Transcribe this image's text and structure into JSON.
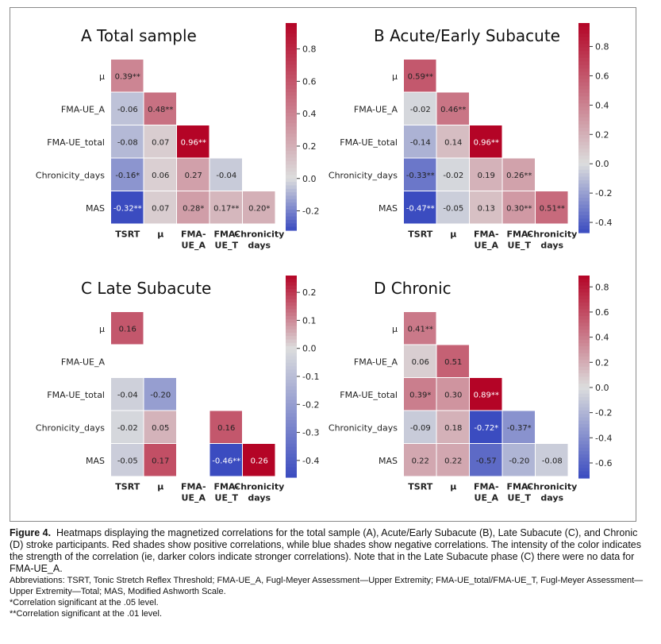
{
  "colors": {
    "strong_negative": "#3b4cc0",
    "neutral": "#dcdddd",
    "strong_positive": "#b40426"
  },
  "chart_data": [
    {
      "type": "heatmap",
      "title": "A  Total sample",
      "rows": [
        "μ",
        "FMA-UE_A",
        "FMA-UE_total",
        "Chronicity_days",
        "MAS"
      ],
      "columns": [
        [
          "TSRT"
        ],
        [
          "μ"
        ],
        [
          "FMA-",
          "UE_A"
        ],
        [
          "FMA-",
          "UE_T"
        ],
        [
          "Chronicity",
          "days"
        ]
      ],
      "values": [
        [
          0.39,
          null,
          null,
          null,
          null
        ],
        [
          -0.06,
          0.48,
          null,
          null,
          null
        ],
        [
          -0.08,
          0.07,
          0.96,
          null,
          null
        ],
        [
          -0.16,
          0.06,
          0.27,
          -0.04,
          null
        ],
        [
          -0.32,
          0.07,
          0.28,
          0.17,
          0.2
        ]
      ],
      "labels": [
        [
          "0.39**",
          null,
          null,
          null,
          null
        ],
        [
          "-0.06",
          "0.48**",
          null,
          null,
          null
        ],
        [
          "-0.08",
          "0.07",
          "0.96**",
          null,
          null
        ],
        [
          "-0.16*",
          "0.06",
          "0.27",
          "-0.04",
          null
        ],
        [
          "-0.32**",
          "0.07",
          "0.28*",
          "0.17**",
          "0.20*"
        ]
      ],
      "vmin": -0.32,
      "vmax": 0.96,
      "ticks": [
        0.8,
        0.6,
        0.4,
        0.2,
        0.0,
        -0.2
      ],
      "tick_labels": [
        "0.8",
        "0.6",
        "0.4",
        "0.2",
        "0.0",
        "-0.2"
      ]
    },
    {
      "type": "heatmap",
      "title": "B  Acute/Early Subacute",
      "rows": [
        "μ",
        "FMA-UE_A",
        "FMA-UE_total",
        "Chronicity_days",
        "MAS"
      ],
      "columns": [
        [
          "TSRT"
        ],
        [
          "μ"
        ],
        [
          "FMA-",
          "UE_A"
        ],
        [
          "FMA-",
          "UE_T"
        ],
        [
          "Chronicity",
          "days"
        ]
      ],
      "values": [
        [
          0.59,
          null,
          null,
          null,
          null
        ],
        [
          -0.02,
          0.46,
          null,
          null,
          null
        ],
        [
          -0.14,
          0.14,
          0.96,
          null,
          null
        ],
        [
          -0.33,
          -0.02,
          0.19,
          0.26,
          null
        ],
        [
          -0.47,
          -0.05,
          0.13,
          0.3,
          0.51
        ]
      ],
      "labels": [
        [
          "0.59**",
          null,
          null,
          null,
          null
        ],
        [
          "-0.02",
          "0.46**",
          null,
          null,
          null
        ],
        [
          "-0.14",
          "0.14",
          "0.96**",
          null,
          null
        ],
        [
          "-0.33**",
          "-0.02",
          "0.19",
          "0.26**",
          null
        ],
        [
          "-0.47**",
          "-0.05",
          "0.13",
          "0.30**",
          "0.51**"
        ]
      ],
      "vmin": -0.47,
      "vmax": 0.96,
      "ticks": [
        0.8,
        0.6,
        0.4,
        0.2,
        0.0,
        -0.2,
        -0.4
      ],
      "tick_labels": [
        "0.8",
        "0.6",
        "0.4",
        "0.2",
        "0.0",
        "-0.2",
        "-0.4"
      ]
    },
    {
      "type": "heatmap",
      "title": "C  Late Subacute",
      "rows": [
        "μ",
        "FMA-UE_A",
        "FMA-UE_total",
        "Chronicity_days",
        "MAS"
      ],
      "columns": [
        [
          "TSRT"
        ],
        [
          "μ"
        ],
        [
          "FMA-",
          "UE_A"
        ],
        [
          "FMA-",
          "UE_T"
        ],
        [
          "Chronicity",
          "days"
        ]
      ],
      "values": [
        [
          0.16,
          null,
          null,
          null,
          null
        ],
        [
          null,
          null,
          null,
          null,
          null
        ],
        [
          -0.04,
          -0.2,
          null,
          null,
          null
        ],
        [
          -0.02,
          0.05,
          null,
          0.16,
          null
        ],
        [
          -0.05,
          0.17,
          null,
          -0.46,
          0.26
        ]
      ],
      "labels": [
        [
          "0.16",
          null,
          null,
          null,
          null
        ],
        [
          null,
          null,
          null,
          null,
          null
        ],
        [
          "-0.04",
          "-0.20",
          null,
          null,
          null
        ],
        [
          "-0.02",
          "0.05",
          null,
          "0.16",
          null
        ],
        [
          "-0.05",
          "0.17",
          null,
          "-0.46**",
          "0.26"
        ]
      ],
      "vmin": -0.46,
      "vmax": 0.26,
      "ticks": [
        0.2,
        0.1,
        0.0,
        -0.1,
        -0.2,
        -0.3,
        -0.4
      ],
      "tick_labels": [
        "0.2",
        "0.1",
        "0.0",
        "-0.1",
        "-0.2",
        "-0.3",
        "-0.4"
      ]
    },
    {
      "type": "heatmap",
      "title": "D  Chronic",
      "rows": [
        "μ",
        "FMA-UE_A",
        "FMA-UE_total",
        "Chronicity_days",
        "MAS"
      ],
      "columns": [
        [
          "TSRT"
        ],
        [
          "μ"
        ],
        [
          "FMA-",
          "UE_A"
        ],
        [
          "FMA-",
          "UE_T"
        ],
        [
          "Chronicity",
          "days"
        ]
      ],
      "values": [
        [
          0.41,
          null,
          null,
          null,
          null
        ],
        [
          0.06,
          0.51,
          null,
          null,
          null
        ],
        [
          0.39,
          0.3,
          0.89,
          null,
          null
        ],
        [
          -0.09,
          0.18,
          -0.72,
          -0.37,
          null
        ],
        [
          0.22,
          0.22,
          -0.57,
          -0.2,
          -0.08
        ]
      ],
      "labels": [
        [
          "0.41**",
          null,
          null,
          null,
          null
        ],
        [
          "0.06",
          "0.51",
          null,
          null,
          null
        ],
        [
          "0.39*",
          "0.30",
          "0.89**",
          null,
          null
        ],
        [
          "-0.09",
          "0.18",
          "-0.72*",
          "-0.37*",
          null
        ],
        [
          "0.22",
          "0.22",
          "-0.57",
          "-0.20",
          "-0.08"
        ]
      ],
      "vmin": -0.72,
      "vmax": 0.89,
      "ticks": [
        0.8,
        0.6,
        0.4,
        0.2,
        0.0,
        -0.2,
        -0.4,
        -0.6
      ],
      "tick_labels": [
        "0.8",
        "0.6",
        "0.4",
        "0.2",
        "0.0",
        "-0.2",
        "-0.4",
        "-0.6"
      ]
    }
  ],
  "caption": {
    "label": "Figure 4.",
    "text": "Heatmaps displaying the magnetized correlations for the total sample (A), Acute/Early Subacute (B), Late Subacute (C), and Chronic (D) stroke participants. Red shades show positive correlations, while blue shades show negative correlations. The intensity of the color indicates the strength of the correlation (ie, darker colors indicate stronger correlations). Note that in the Late Subacute phase (C) there were no data for FMA-UE_A.",
    "abbreviations": "Abbreviations: TSRT, Tonic Stretch Reflex Threshold; FMA-UE_A, Fugl-Meyer Assessment—Upper Extremity; FMA-UE_total/FMA-UE_T, Fugl-Meyer Assessment—Upper Extremity—Total; MAS, Modified Ashworth Scale.",
    "note1": "*Correlation significant at the .05 level.",
    "note2": "**Correlation significant at the .01 level."
  }
}
